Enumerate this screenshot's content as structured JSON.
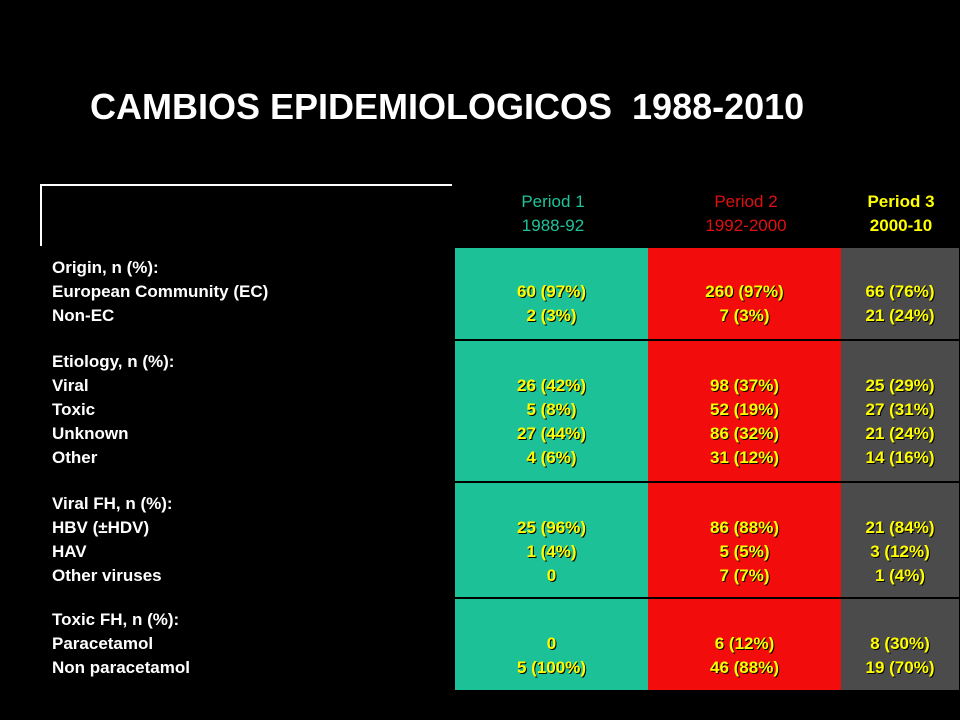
{
  "title": "CAMBIOS EPIDEMIOLOGICOS  1988-2010",
  "periods": [
    {
      "name": "Period 1",
      "years": "1988-92",
      "color": "#1fc39a"
    },
    {
      "name": "Period 2",
      "years": "1992-2000",
      "color": "#e01010"
    },
    {
      "name": "Period 3",
      "years": "2000-10",
      "color": "#ffff00"
    }
  ],
  "column_colors": {
    "period1": "#1dc198",
    "period2": "#f20c0c",
    "period3": "#4b4b4b"
  },
  "rows": [
    {
      "header": "Origin, n (%):",
      "labels": [
        "European Community (EC)",
        "Non-EC"
      ],
      "p1": [
        "60 (97%)",
        "2 (3%)"
      ],
      "p2": [
        "260 (97%)",
        "7 (3%)"
      ],
      "p3": [
        "66 (76%)",
        "21 (24%)"
      ]
    },
    {
      "header": "Etiology, n (%):",
      "labels": [
        "Viral",
        "Toxic",
        "Unknown",
        "Other"
      ],
      "p1": [
        "26 (42%)",
        "5 (8%)",
        "27 (44%)",
        "4 (6%)"
      ],
      "p2": [
        "98 (37%)",
        "52 (19%)",
        "86 (32%)",
        "31 (12%)"
      ],
      "p3": [
        "25 (29%)",
        "27 (31%)",
        "21 (24%)",
        "14 (16%)"
      ]
    },
    {
      "header": "Viral FH, n (%):",
      "labels": [
        "HBV (±HDV)",
        "HAV",
        "Other viruses"
      ],
      "p1": [
        "25 (96%)",
        "1 (4%)",
        "0"
      ],
      "p2": [
        "86 (88%)",
        "5 (5%)",
        "7 (7%)"
      ],
      "p3": [
        "21 (84%)",
        "3 (12%)",
        "1 (4%)"
      ]
    },
    {
      "header": "Toxic FH, n (%):",
      "labels": [
        "Paracetamol",
        "Non paracetamol"
      ],
      "p1": [
        "0",
        "5 (100%)"
      ],
      "p2": [
        "6 (12%)",
        "46 (88%)"
      ],
      "p3": [
        "8 (30%)",
        "19 (70%)"
      ]
    }
  ]
}
